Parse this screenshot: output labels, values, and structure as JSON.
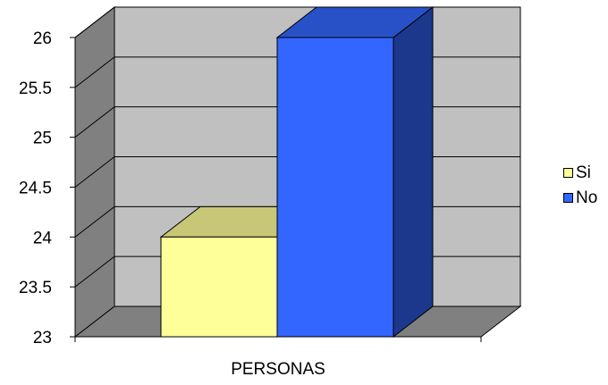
{
  "chart_data": {
    "type": "bar",
    "style": "3d-clustered-column",
    "categories": [
      "PERSONAS"
    ],
    "series": [
      {
        "name": "Si",
        "values": [
          24
        ],
        "color": "#FFFF99"
      },
      {
        "name": "No",
        "values": [
          26
        ],
        "color": "#3366FF"
      }
    ],
    "ylim": [
      23,
      26
    ],
    "yticks": [
      "23",
      "23.5",
      "24",
      "24.5",
      "25",
      "25.5",
      "26"
    ],
    "xlabel": "",
    "ylabel": "",
    "title": "",
    "grid": true,
    "legend_position": "right",
    "wall_color": "#C0C0C0",
    "floor_color": "#808080"
  }
}
